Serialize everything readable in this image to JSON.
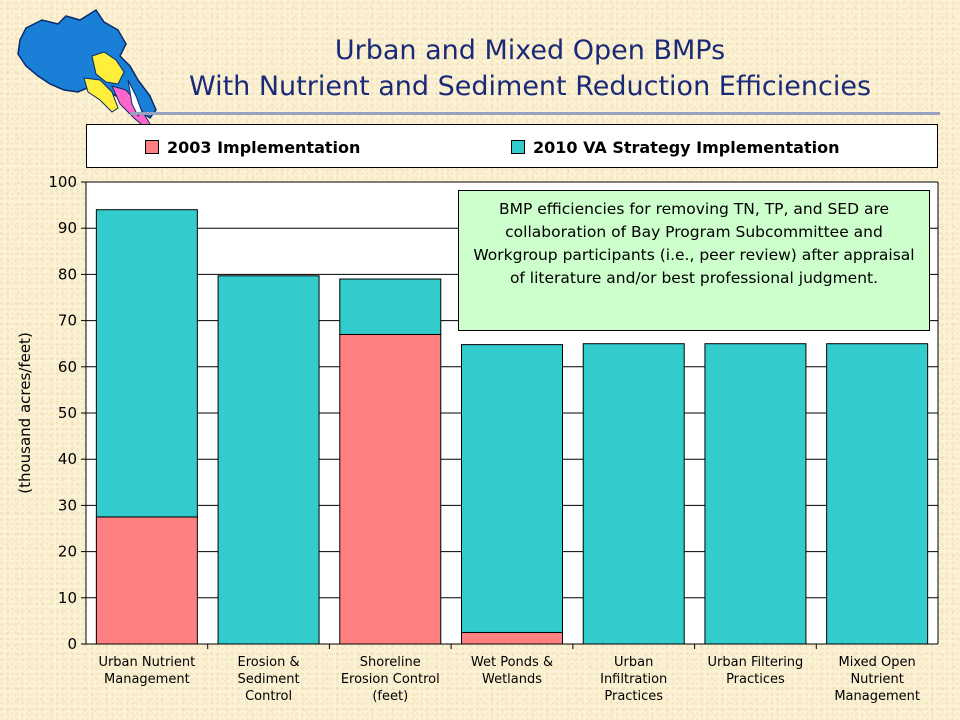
{
  "title": {
    "line1": "Urban and Mixed Open BMPs",
    "line2": "With Nutrient and Sediment Reduction Efficiencies"
  },
  "logo_icon": "chesapeake-bay-watershed-map-icon",
  "note": "BMP efficiencies for removing TN, TP, and SED are collaboration of Bay Program Subcommittee and Workgroup participants (i.e., peer review) after appraisal of literature and/or best professional judgment.",
  "colors": {
    "series_2003": "#ff8080",
    "series_2010": "#33cccc",
    "title": "#1b2a78",
    "note_bg": "#ccffcc"
  },
  "chart_data": {
    "type": "bar",
    "stacked": true,
    "title": "",
    "xlabel": "",
    "ylabel": "(thousand acres/feet)",
    "ylim": [
      0,
      100
    ],
    "yticks": [
      0,
      10,
      20,
      30,
      40,
      50,
      60,
      70,
      80,
      90,
      100
    ],
    "grid": true,
    "legend_position": "top",
    "categories": [
      [
        "Urban Nutrient",
        "Management"
      ],
      [
        "Erosion &",
        "Sediment",
        "Control"
      ],
      [
        "Shoreline",
        "Erosion Control",
        "(feet)"
      ],
      [
        "Wet Ponds &",
        "Wetlands"
      ],
      [
        "Urban",
        "Infiltration",
        "Practices"
      ],
      [
        "Urban Filtering",
        "Practices"
      ],
      [
        "Mixed Open",
        "Nutrient",
        "Management"
      ]
    ],
    "series": [
      {
        "name": "2003 Implementation",
        "color": "#ff8080",
        "values": [
          27.5,
          0,
          67,
          2.5,
          0,
          0,
          0
        ]
      },
      {
        "name": "2010 VA Strategy Implementation",
        "color": "#33cccc",
        "values": [
          66.5,
          79.7,
          12,
          62.3,
          65,
          65,
          65
        ]
      }
    ]
  }
}
